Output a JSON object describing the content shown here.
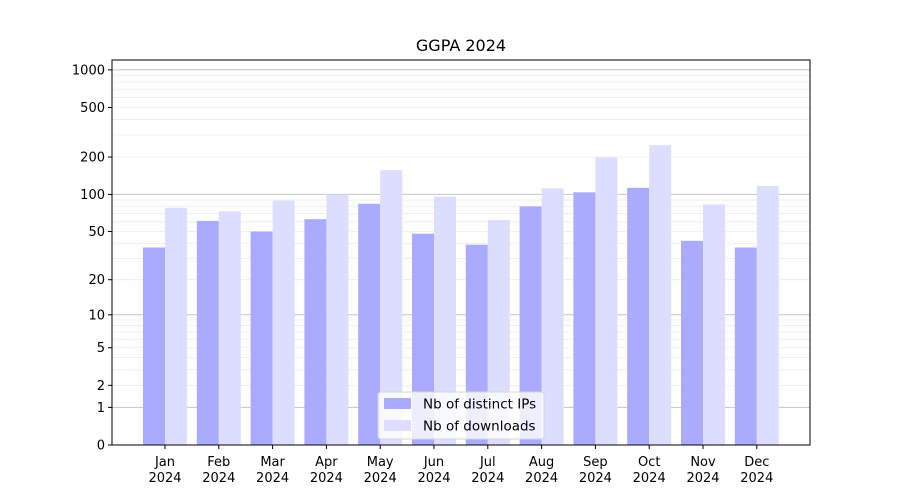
{
  "chart_data": {
    "type": "bar",
    "title": "GGPA 2024",
    "xlabel": "",
    "ylabel": "",
    "y_scale": "log(1+y)",
    "ylim": [
      0,
      1200
    ],
    "y_ticks": [
      0,
      1,
      2,
      5,
      10,
      20,
      50,
      100,
      200,
      500,
      1000
    ],
    "categories": [
      "Jan\n2024",
      "Feb\n2024",
      "Mar\n2024",
      "Apr\n2024",
      "May\n2024",
      "Jun\n2024",
      "Jul\n2024",
      "Aug\n2024",
      "Sep\n2024",
      "Oct\n2024",
      "Nov\n2024",
      "Dec\n2024"
    ],
    "series": [
      {
        "name": "Nb of distinct IPs",
        "color": "#aaaaff",
        "values": [
          37,
          61,
          50,
          63,
          84,
          48,
          39,
          80,
          104,
          113,
          42,
          37
        ]
      },
      {
        "name": "Nb of downloads",
        "color": "#ddddff",
        "values": [
          78,
          73,
          89,
          100,
          157,
          96,
          62,
          112,
          199,
          249,
          83,
          117
        ]
      }
    ],
    "grid": true,
    "legend_position": "bottom-center"
  }
}
